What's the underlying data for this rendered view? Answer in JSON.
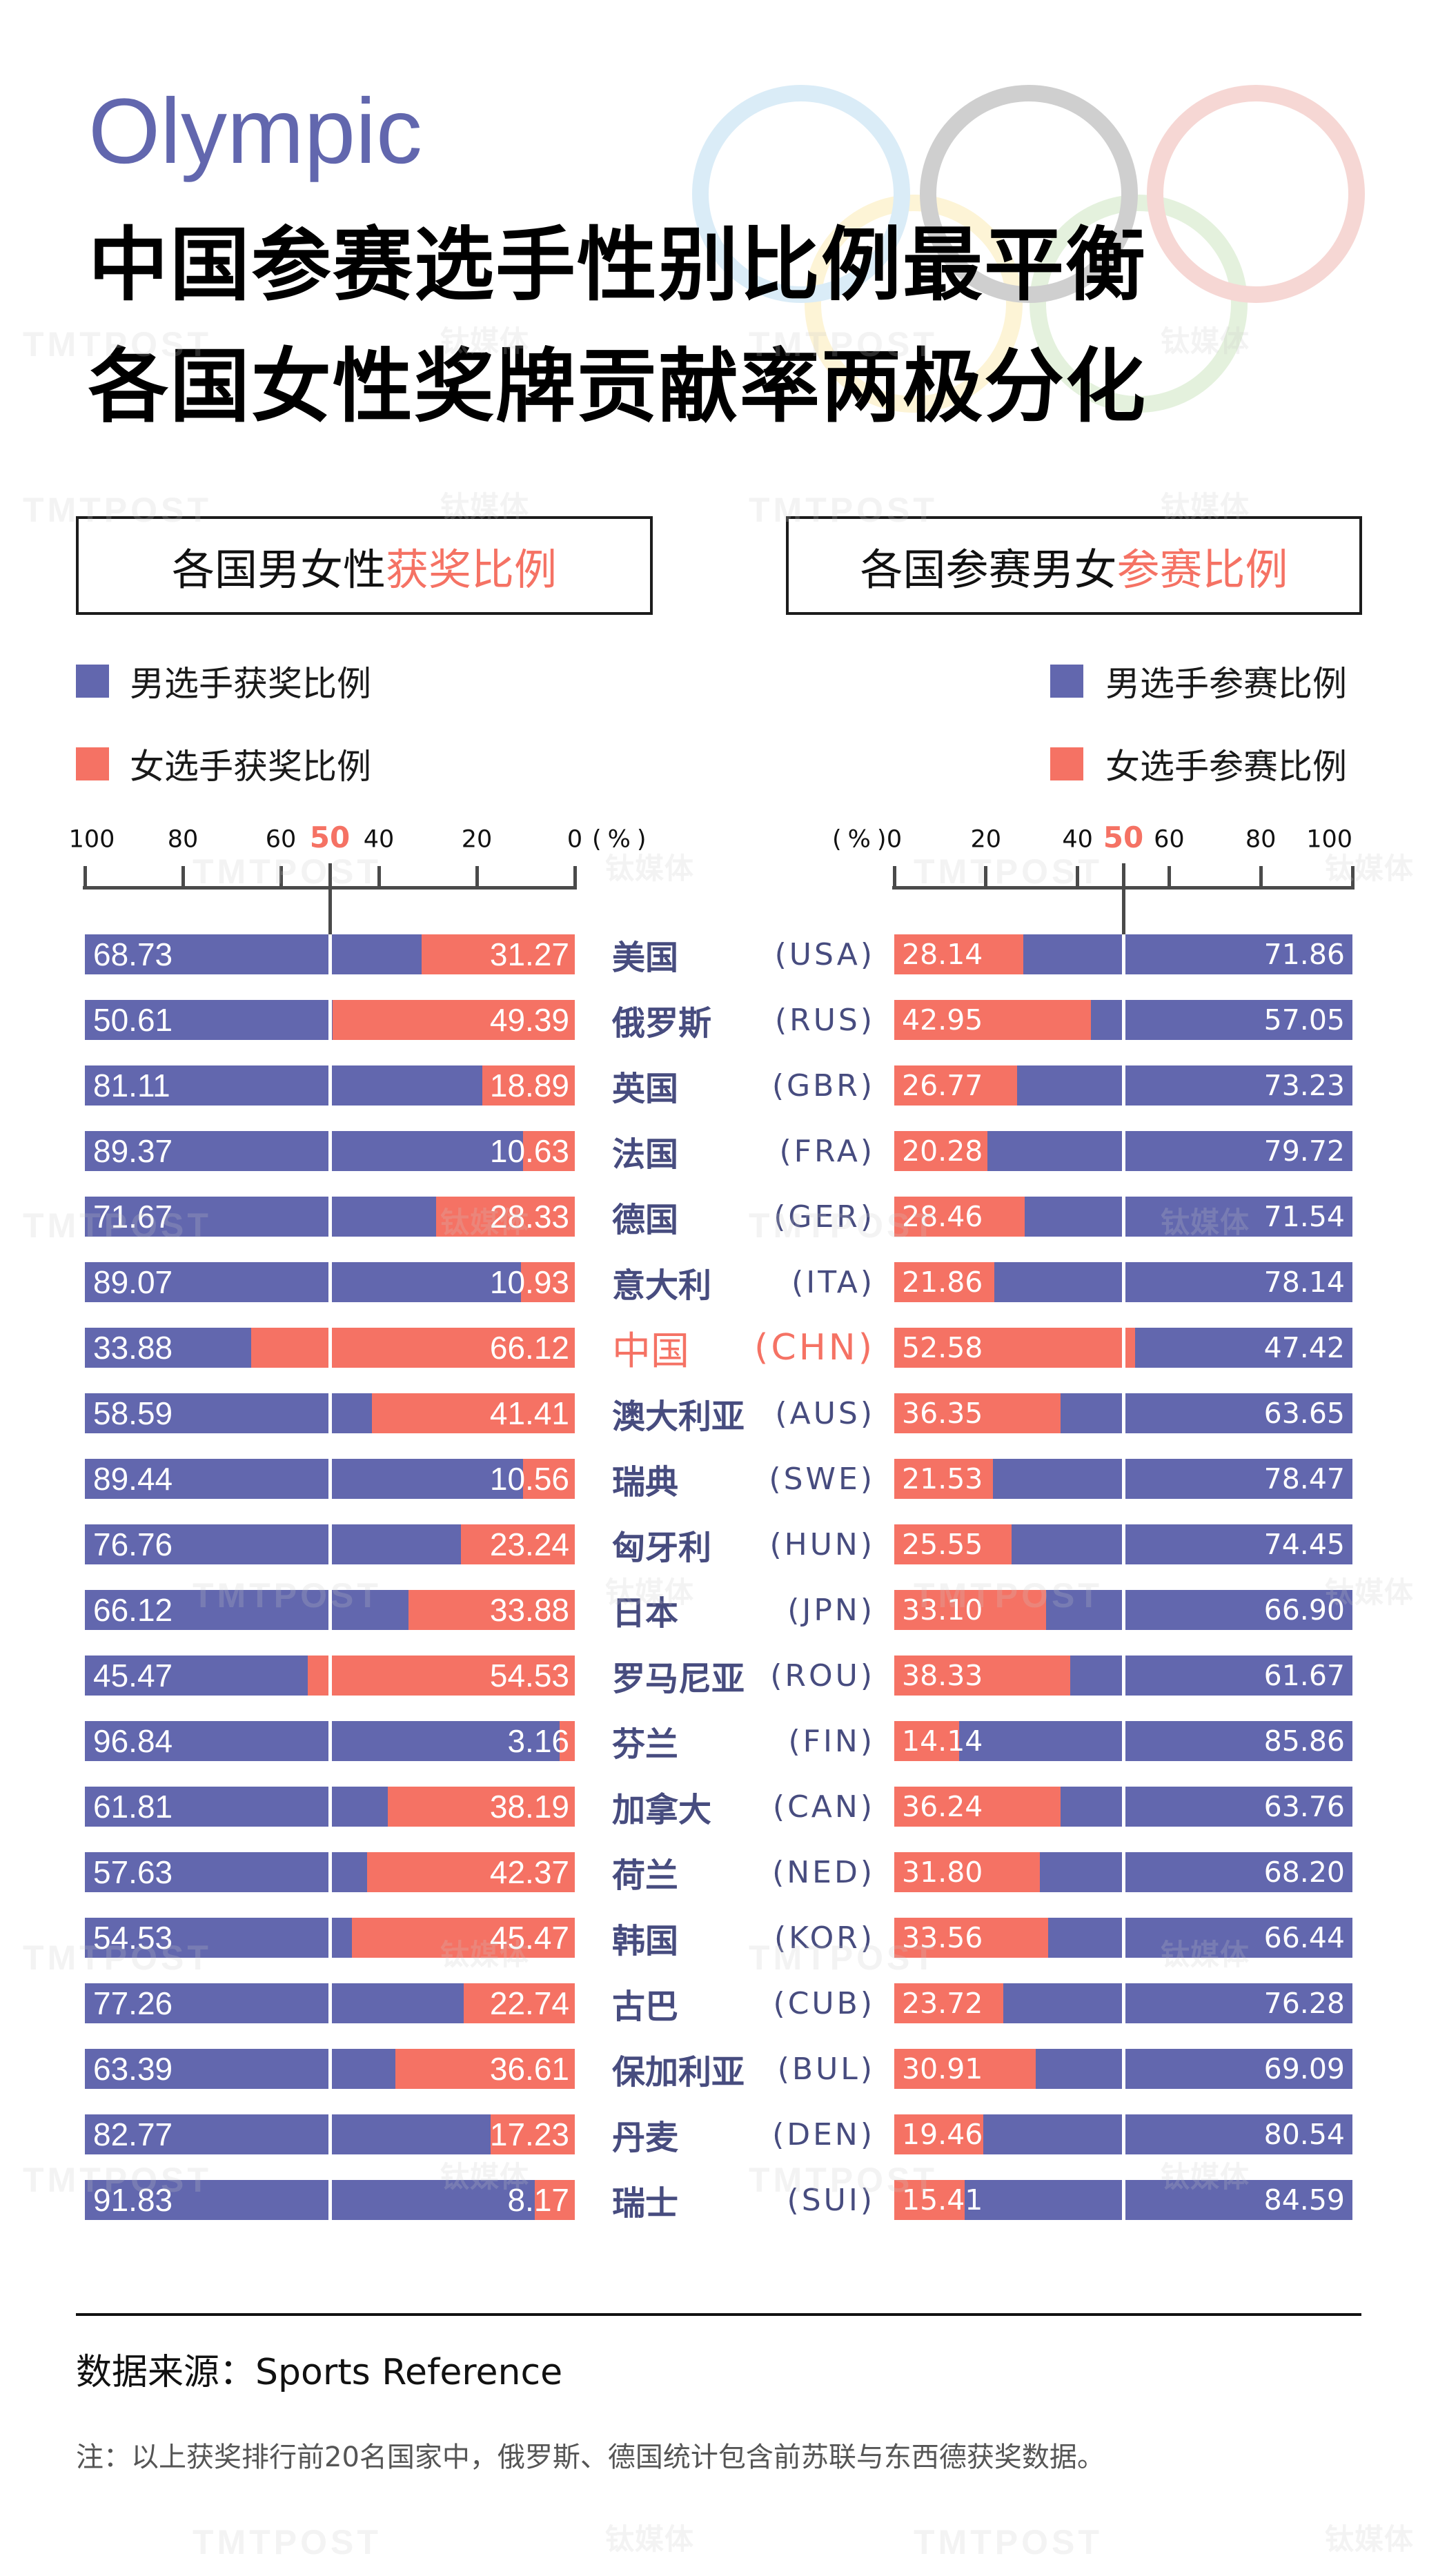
{
  "header": {
    "kicker": "Olympic",
    "headline_lines": [
      "中国参赛选手性别比例最平衡",
      "各国女性奖牌贡献率两极分化"
    ]
  },
  "sections": {
    "left": {
      "title_plain": "各国男女性",
      "title_accent": "获奖比例"
    },
    "right": {
      "title_plain": "各国参赛男女",
      "title_accent": "参赛比例"
    }
  },
  "colors": {
    "male": "#6267AE",
    "female": "#F57264",
    "country_label": "#474C7F",
    "accent": "#F57264",
    "kicker": "#6267AE"
  },
  "countries": [
    {
      "name": "美国",
      "code": "(USA)"
    },
    {
      "name": "俄罗斯",
      "code": "(RUS)"
    },
    {
      "name": "英国",
      "code": "(GBR)"
    },
    {
      "name": "法国",
      "code": "(FRA)"
    },
    {
      "name": "德国",
      "code": "(GER)"
    },
    {
      "name": "意大利",
      "code": "(ITA)"
    },
    {
      "name": "中国",
      "code": "(CHN)",
      "highlight": true
    },
    {
      "name": "澳大利亚",
      "code": "(AUS)"
    },
    {
      "name": "瑞典",
      "code": "(SWE)"
    },
    {
      "name": "匈牙利",
      "code": "(HUN)"
    },
    {
      "name": "日本",
      "code": "(JPN)"
    },
    {
      "name": "罗马尼亚",
      "code": "(ROU)"
    },
    {
      "name": "芬兰",
      "code": "(FIN)"
    },
    {
      "name": "加拿大",
      "code": "(CAN)"
    },
    {
      "name": "荷兰",
      "code": "(NED)"
    },
    {
      "name": "韩国",
      "code": "(KOR)"
    },
    {
      "name": "古巴",
      "code": "(CUB)"
    },
    {
      "name": "保加利亚",
      "code": "(BUL)"
    },
    {
      "name": "丹麦",
      "code": "(DEN)"
    },
    {
      "name": "瑞士",
      "code": "(SUI)"
    }
  ],
  "chart_data": [
    {
      "type": "bar",
      "stacked": true,
      "orientation": "horizontal",
      "title": "各国男女性获奖比例",
      "xlabel": "(%)",
      "ylabel": "",
      "xlim": [
        100,
        0
      ],
      "x_ticks": [
        100,
        80,
        60,
        50,
        40,
        20,
        0
      ],
      "highlight_tick": 50,
      "grid": false,
      "legend": "top-left",
      "categories": [
        "USA",
        "RUS",
        "GBR",
        "FRA",
        "GER",
        "ITA",
        "CHN",
        "AUS",
        "SWE",
        "HUN",
        "JPN",
        "ROU",
        "FIN",
        "CAN",
        "NED",
        "KOR",
        "CUB",
        "BUL",
        "DEN",
        "SUI"
      ],
      "series": [
        {
          "name": "男选手获奖比例",
          "color": "#6267AE",
          "values": [
            68.73,
            50.61,
            81.11,
            89.37,
            71.67,
            89.07,
            33.88,
            58.59,
            89.44,
            76.76,
            66.12,
            45.47,
            96.84,
            61.81,
            57.63,
            54.53,
            77.26,
            63.39,
            82.77,
            91.83
          ],
          "labels": [
            "68.73",
            "50.61",
            "81.11",
            "89.37",
            "71.67",
            "89.07",
            "33.88",
            "58.59",
            "89.44",
            "76.76",
            "66.12",
            "45.47",
            "96.84",
            "61.81",
            "57.63",
            "54.53",
            "77.26",
            "63.39",
            "82.77",
            "91.83"
          ]
        },
        {
          "name": "女选手获奖比例",
          "color": "#F57264",
          "values": [
            31.27,
            49.39,
            18.89,
            10.63,
            28.33,
            10.93,
            66.12,
            41.41,
            10.56,
            23.24,
            33.88,
            54.53,
            3.16,
            38.19,
            42.37,
            45.47,
            22.74,
            36.61,
            17.23,
            8.17
          ],
          "labels": [
            "31.27",
            "49.39",
            "18.89",
            "10.63",
            "28.33",
            "10.93",
            "66.12",
            "41.41",
            "10.56",
            "23.24",
            "33.88",
            "54.53",
            "3.16",
            "38.19",
            "42.37",
            "45.47",
            "22.74",
            "36.61",
            "17.23",
            "8.17"
          ]
        }
      ]
    },
    {
      "type": "bar",
      "stacked": true,
      "orientation": "horizontal",
      "title": "各国参赛男女参赛比例",
      "xlabel": "(%)",
      "ylabel": "",
      "xlim": [
        0,
        100
      ],
      "x_ticks": [
        0,
        20,
        40,
        50,
        60,
        80,
        100
      ],
      "highlight_tick": 50,
      "grid": false,
      "legend": "top-right",
      "categories": [
        "USA",
        "RUS",
        "GBR",
        "FRA",
        "GER",
        "ITA",
        "CHN",
        "AUS",
        "SWE",
        "HUN",
        "JPN",
        "ROU",
        "FIN",
        "CAN",
        "NED",
        "KOR",
        "CUB",
        "BUL",
        "DEN",
        "SUI"
      ],
      "series": [
        {
          "name": "男选手参赛比例",
          "color": "#6267AE",
          "values": [
            71.86,
            57.05,
            73.23,
            79.72,
            71.54,
            78.14,
            47.42,
            63.65,
            78.47,
            74.45,
            66.9,
            61.67,
            85.86,
            63.76,
            68.2,
            66.44,
            76.28,
            69.09,
            80.54,
            84.59
          ],
          "labels": [
            "71.86",
            "57.05",
            "73.23",
            "79.72",
            "71.54",
            "78.14",
            "47.42",
            "63.65",
            "78.47",
            "74.45",
            "66.90",
            "61.67",
            "85.86",
            "63.76",
            "68.20",
            "66.44",
            "76.28",
            "69.09",
            "80.54",
            "84.59"
          ]
        },
        {
          "name": "女选手参赛比例",
          "color": "#F57264",
          "values": [
            28.14,
            42.95,
            26.77,
            20.28,
            28.46,
            21.86,
            52.58,
            36.35,
            21.53,
            25.55,
            33.1,
            38.33,
            14.14,
            36.24,
            31.8,
            33.56,
            23.72,
            30.91,
            19.46,
            15.41
          ],
          "labels": [
            "28.14",
            "42.95",
            "26.77",
            "20.28",
            "28.46",
            "21.86",
            "52.58",
            "36.35",
            "21.53",
            "25.55",
            "33.10",
            "38.33",
            "14.14",
            "36.24",
            "31.80",
            "33.56",
            "23.72",
            "30.91",
            "19.46",
            "15.41"
          ]
        }
      ]
    }
  ],
  "footer": {
    "source": "数据来源：Sports Reference",
    "note": "注：以上获奖排行前20名国家中，俄罗斯、德国统计包含前苏联与东西德获奖数据。"
  },
  "watermark": {
    "latin": "TMTPOST",
    "cjk": "钛媒体"
  }
}
